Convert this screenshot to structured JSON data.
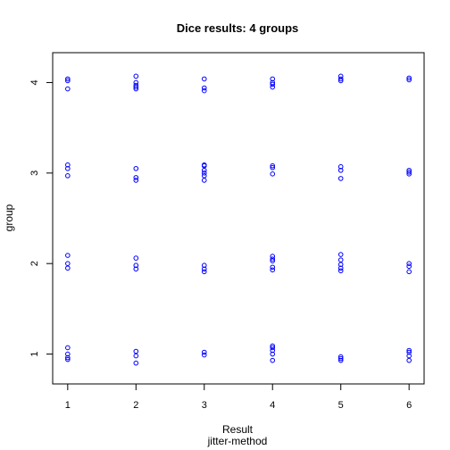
{
  "chart_data": {
    "type": "scatter",
    "title": "Dice results: 4 groups",
    "xlabel": "Result",
    "xsublabel": "jitter-method",
    "ylabel": "group",
    "xlim": [
      0.78,
      6.22
    ],
    "ylim": [
      0.67,
      4.33
    ],
    "xticks": [
      "1",
      "2",
      "3",
      "4",
      "5",
      "6"
    ],
    "yticks": [
      "1",
      "2",
      "3",
      "4"
    ],
    "grid": false,
    "legend": "none",
    "point_color": "#0000ff",
    "point_shape": "open-circle",
    "points": [
      {
        "x": 1,
        "y": 4.04
      },
      {
        "x": 1,
        "y": 4.02
      },
      {
        "x": 1,
        "y": 3.93
      },
      {
        "x": 2,
        "y": 4.07
      },
      {
        "x": 2,
        "y": 4.0
      },
      {
        "x": 2,
        "y": 3.97
      },
      {
        "x": 2,
        "y": 3.95
      },
      {
        "x": 2,
        "y": 3.93
      },
      {
        "x": 3,
        "y": 4.04
      },
      {
        "x": 3,
        "y": 3.94
      },
      {
        "x": 3,
        "y": 3.91
      },
      {
        "x": 4,
        "y": 4.04
      },
      {
        "x": 4,
        "y": 4.0
      },
      {
        "x": 4,
        "y": 3.98
      },
      {
        "x": 4,
        "y": 3.95
      },
      {
        "x": 5,
        "y": 4.07
      },
      {
        "x": 5,
        "y": 4.04
      },
      {
        "x": 5,
        "y": 4.02
      },
      {
        "x": 6,
        "y": 4.05
      },
      {
        "x": 6,
        "y": 4.03
      },
      {
        "x": 1,
        "y": 3.09
      },
      {
        "x": 1,
        "y": 3.05
      },
      {
        "x": 1,
        "y": 2.97
      },
      {
        "x": 2,
        "y": 3.05
      },
      {
        "x": 2,
        "y": 2.95
      },
      {
        "x": 2,
        "y": 2.92
      },
      {
        "x": 3,
        "y": 3.09
      },
      {
        "x": 3,
        "y": 3.08
      },
      {
        "x": 3,
        "y": 3.03
      },
      {
        "x": 3,
        "y": 3.0
      },
      {
        "x": 3,
        "y": 2.97
      },
      {
        "x": 3,
        "y": 2.92
      },
      {
        "x": 4,
        "y": 3.08
      },
      {
        "x": 4,
        "y": 3.06
      },
      {
        "x": 4,
        "y": 2.99
      },
      {
        "x": 5,
        "y": 3.07
      },
      {
        "x": 5,
        "y": 3.03
      },
      {
        "x": 5,
        "y": 2.94
      },
      {
        "x": 6,
        "y": 3.03
      },
      {
        "x": 6,
        "y": 3.01
      },
      {
        "x": 6,
        "y": 2.99
      },
      {
        "x": 1,
        "y": 2.09
      },
      {
        "x": 1,
        "y": 2.0
      },
      {
        "x": 1,
        "y": 1.95
      },
      {
        "x": 2,
        "y": 2.06
      },
      {
        "x": 2,
        "y": 1.98
      },
      {
        "x": 2,
        "y": 1.94
      },
      {
        "x": 3,
        "y": 1.98
      },
      {
        "x": 3,
        "y": 1.94
      },
      {
        "x": 3,
        "y": 1.91
      },
      {
        "x": 4,
        "y": 2.08
      },
      {
        "x": 4,
        "y": 2.05
      },
      {
        "x": 4,
        "y": 2.03
      },
      {
        "x": 4,
        "y": 1.96
      },
      {
        "x": 4,
        "y": 1.93
      },
      {
        "x": 5,
        "y": 2.1
      },
      {
        "x": 5,
        "y": 2.04
      },
      {
        "x": 5,
        "y": 1.99
      },
      {
        "x": 5,
        "y": 1.95
      },
      {
        "x": 5,
        "y": 1.92
      },
      {
        "x": 6,
        "y": 2.0
      },
      {
        "x": 6,
        "y": 1.97
      },
      {
        "x": 6,
        "y": 1.91
      },
      {
        "x": 1,
        "y": 1.07
      },
      {
        "x": 1,
        "y": 1.0
      },
      {
        "x": 1,
        "y": 0.96
      },
      {
        "x": 1,
        "y": 0.94
      },
      {
        "x": 2,
        "y": 1.03
      },
      {
        "x": 2,
        "y": 0.98
      },
      {
        "x": 2,
        "y": 0.9
      },
      {
        "x": 3,
        "y": 1.02
      },
      {
        "x": 3,
        "y": 0.99
      },
      {
        "x": 4,
        "y": 1.09
      },
      {
        "x": 4,
        "y": 1.07
      },
      {
        "x": 4,
        "y": 1.04
      },
      {
        "x": 4,
        "y": 1.0
      },
      {
        "x": 4,
        "y": 0.93
      },
      {
        "x": 5,
        "y": 0.97
      },
      {
        "x": 5,
        "y": 0.95
      },
      {
        "x": 5,
        "y": 0.93
      },
      {
        "x": 6,
        "y": 1.04
      },
      {
        "x": 6,
        "y": 1.02
      },
      {
        "x": 6,
        "y": 0.98
      },
      {
        "x": 6,
        "y": 0.93
      }
    ]
  }
}
